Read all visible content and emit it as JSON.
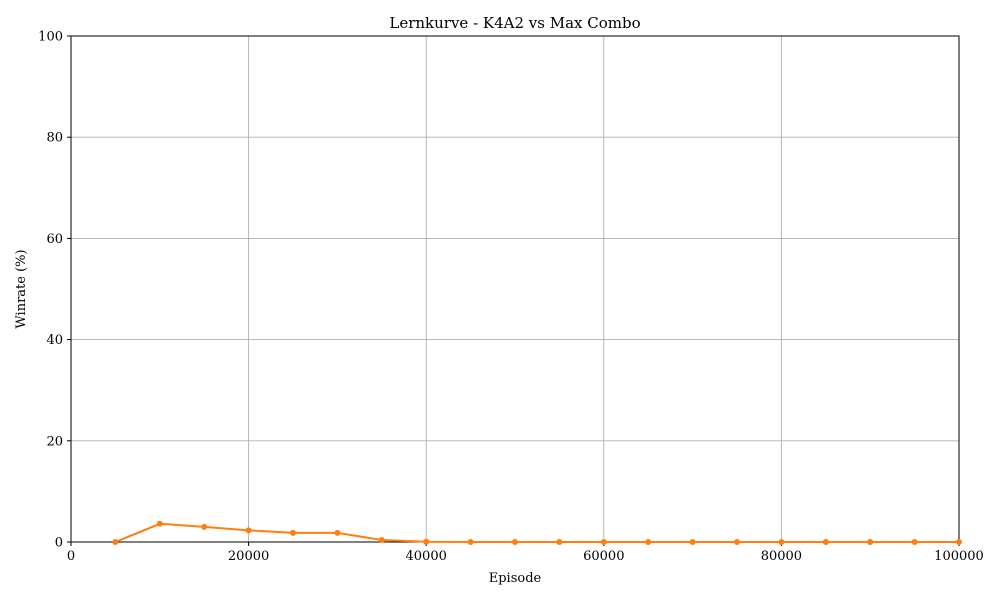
{
  "chart_data": {
    "type": "line",
    "title": "Lernkurve - K4A2 vs Max Combo",
    "xlabel": "Episode",
    "ylabel": "Winrate (%)",
    "xlim": [
      0,
      100000
    ],
    "ylim": [
      0,
      100
    ],
    "x_ticks": [
      "0",
      "20000",
      "40000",
      "60000",
      "80000",
      "100000"
    ],
    "y_ticks": [
      "0",
      "20",
      "40",
      "60",
      "80",
      "100"
    ],
    "grid": true,
    "series": [
      {
        "color": "#ff7f0e",
        "x": [
          5000,
          10000,
          15000,
          20000,
          25000,
          30000,
          35000,
          40000,
          45000,
          50000,
          55000,
          60000,
          65000,
          70000,
          75000,
          80000,
          85000,
          90000,
          95000,
          100000
        ],
        "y": [
          0.0,
          3.6,
          3.0,
          2.3,
          1.8,
          1.8,
          0.4,
          0.05,
          0.0,
          0.0,
          0.0,
          0.0,
          0.0,
          0.0,
          0.0,
          0.0,
          0.0,
          0.0,
          0.0,
          0.0
        ]
      }
    ]
  }
}
